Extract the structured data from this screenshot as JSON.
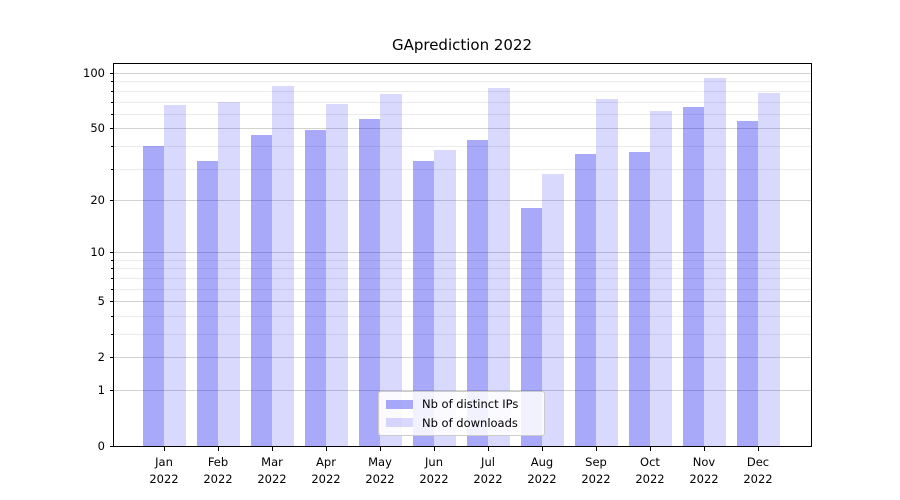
{
  "chart_data": {
    "type": "bar",
    "title": "GAprediction 2022",
    "xlabel": "",
    "ylabel": "",
    "categories": [
      "Jan",
      "Feb",
      "Mar",
      "Apr",
      "May",
      "Jun",
      "Jul",
      "Aug",
      "Sep",
      "Oct",
      "Nov",
      "Dec"
    ],
    "category_year": "2022",
    "series": [
      {
        "name": "Nb of distinct IPs",
        "values": [
          40,
          33,
          46,
          49,
          56,
          33,
          43,
          18,
          36,
          37,
          65,
          55
        ],
        "color": "rgba(10,10,240,0.35)"
      },
      {
        "name": "Nb of downloads",
        "values": [
          67,
          70,
          85,
          68,
          77,
          38,
          83,
          28,
          72,
          62,
          94,
          78
        ],
        "color": "rgba(10,10,240,0.155)"
      }
    ],
    "yscale": "log(value+1)",
    "ylim": [
      0,
      112
    ],
    "y_ticks": [
      0,
      1,
      2,
      5,
      10,
      20,
      50,
      100
    ],
    "y_minor_ticks": [
      3,
      4,
      6,
      7,
      8,
      9,
      30,
      40,
      60,
      70,
      80,
      90
    ],
    "grid": "horizontal major + minor",
    "legend_position": "lower center",
    "colors": {
      "spine": "#000000",
      "grid_major": "#d3d3d3",
      "grid_minor": "#ebebeb",
      "background": "#ffffff"
    }
  }
}
